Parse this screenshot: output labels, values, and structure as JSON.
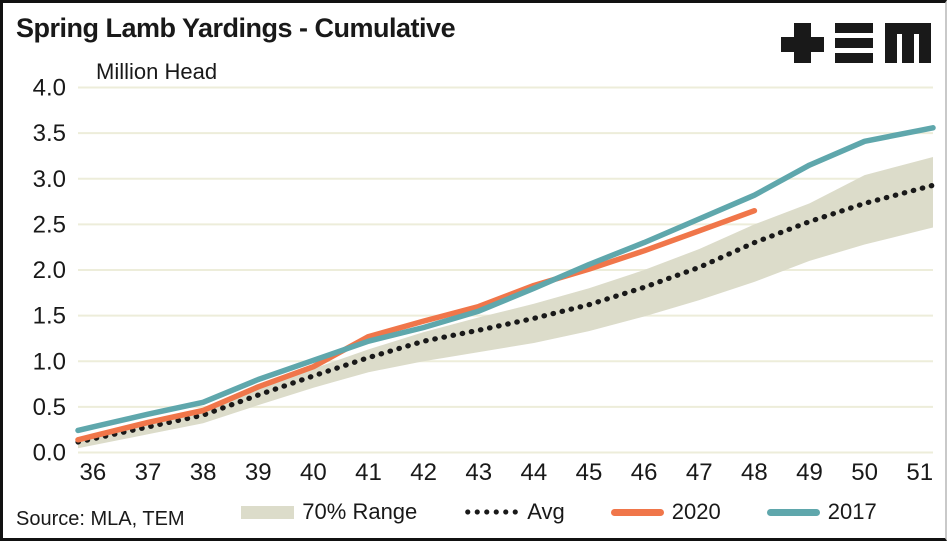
{
  "header": {
    "title": "Spring Lamb Yardings - Cumulative",
    "logo": "TEM"
  },
  "chart_data": {
    "type": "line",
    "title": "Spring Lamb Yardings - Cumulative",
    "xlabel": "",
    "ylabel": "Million Head",
    "xlim": [
      35.73,
      51.24
    ],
    "ylim": [
      0,
      4
    ],
    "yticks": [
      0,
      0.5,
      1,
      1.5,
      2,
      2.5,
      3,
      3.5,
      4
    ],
    "xticks": [
      36,
      37,
      38,
      39,
      40,
      41,
      42,
      43,
      44,
      45,
      46,
      47,
      48,
      49,
      50,
      51
    ],
    "x": [
      36,
      37,
      38,
      39,
      40,
      41,
      42,
      43,
      44,
      45,
      46,
      47,
      48,
      49,
      50,
      51
    ],
    "grid": "horizontal",
    "legend_position": "bottom",
    "colors": {
      "band": "#dcdcca",
      "avg": "#191919",
      "y2020": "#f0764a",
      "y2017": "#5fa7ac",
      "gridline": "#ededda",
      "text": "#191919"
    },
    "series": [
      {
        "name": "70% Range",
        "type": "band",
        "color": "#dcdcca",
        "upper": [
          0.2,
          0.34,
          0.48,
          0.7,
          0.92,
          1.13,
          1.32,
          1.48,
          1.63,
          1.8,
          2.0,
          2.23,
          2.5,
          2.73,
          3.04,
          3.2
        ],
        "lower": [
          0.08,
          0.2,
          0.32,
          0.52,
          0.71,
          0.88,
          1.0,
          1.1,
          1.2,
          1.33,
          1.49,
          1.67,
          1.87,
          2.1,
          2.28,
          2.43
        ],
        "extend_right": true
      },
      {
        "name": "Avg",
        "type": "dotted",
        "color": "#191919",
        "values": [
          0.15,
          0.28,
          0.41,
          0.63,
          0.84,
          1.04,
          1.22,
          1.34,
          1.47,
          1.62,
          1.81,
          2.03,
          2.3,
          2.53,
          2.73,
          2.89
        ],
        "extend_right": true
      },
      {
        "name": "2020",
        "type": "line",
        "color": "#f0764a",
        "values": [
          0.18,
          0.33,
          0.46,
          0.72,
          0.94,
          1.27,
          1.44,
          1.6,
          1.83,
          2.01,
          2.21,
          2.43,
          2.65
        ],
        "extend_right": false
      },
      {
        "name": "2017",
        "type": "line",
        "color": "#5fa7ac",
        "values": [
          0.28,
          0.42,
          0.55,
          0.8,
          1.01,
          1.22,
          1.37,
          1.55,
          1.8,
          2.06,
          2.3,
          2.56,
          2.82,
          3.15,
          3.41,
          3.53
        ],
        "extend_right": true
      }
    ]
  },
  "source": {
    "text": "Source: MLA, TEM"
  }
}
